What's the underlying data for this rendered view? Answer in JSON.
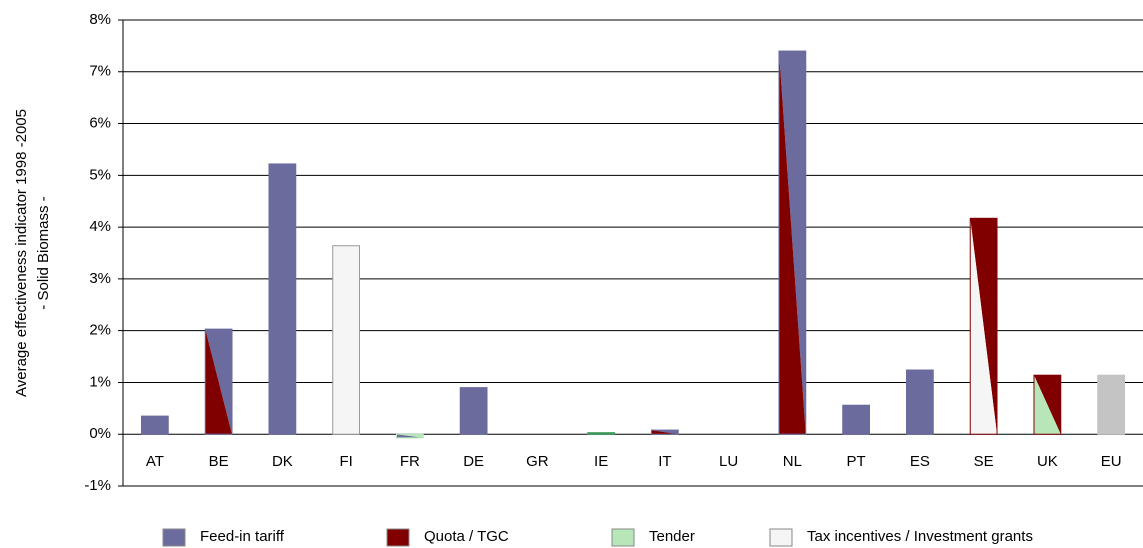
{
  "chart_data": {
    "type": "bar",
    "ylabel": [
      "Average effectiveness indicator 1998 -2005",
      "- Solid Biomass -"
    ],
    "categories": [
      "AT",
      "BE",
      "DK",
      "FI",
      "FR",
      "DE",
      "GR",
      "IE",
      "IT",
      "LU",
      "NL",
      "PT",
      "ES",
      "SE",
      "UK",
      "EU"
    ],
    "values": [
      0.35,
      2.03,
      5.22,
      3.64,
      -0.07,
      0.9,
      0,
      0.03,
      0.08,
      0,
      7.4,
      0.56,
      1.24,
      4.17,
      1.14,
      1.14
    ],
    "bar_colors": [
      [
        "#6b6b9e"
      ],
      [
        "#6b6b9e",
        "#800000"
      ],
      [
        "#6b6b9e"
      ],
      [
        "#f5f5f5"
      ],
      [
        "#b8e6b8",
        "#6b6b9e"
      ],
      [
        "#6b6b9e"
      ],
      [
        "#6b6b9e"
      ],
      [
        "#3c9a5a"
      ],
      [
        "#6b6b9e",
        "#800000"
      ],
      [
        "#6b6b9e"
      ],
      [
        "#6b6b9e",
        "#800000"
      ],
      [
        "#6b6b9e"
      ],
      [
        "#6b6b9e"
      ],
      [
        "#800000",
        "#f5f5f5"
      ],
      [
        "#800000",
        "#b8e6b8"
      ],
      [
        "#c4c4c4"
      ]
    ],
    "legend": [
      {
        "name": "Feed-in tariff",
        "color": "#6b6b9e"
      },
      {
        "name": "Quota / TGC",
        "color": "#800000"
      },
      {
        "name": "Tender",
        "color": "#b8e6b8"
      },
      {
        "name": "Tax incentives / Investment grants",
        "color": "#f5f5f5"
      }
    ],
    "ylim": [
      -1,
      8
    ],
    "yticks": [
      {
        "value": -1,
        "label": "-1%"
      },
      {
        "value": 0,
        "label": "0%"
      },
      {
        "value": 1,
        "label": "1%"
      },
      {
        "value": 2,
        "label": "2%"
      },
      {
        "value": 3,
        "label": "3%"
      },
      {
        "value": 4,
        "label": "4%"
      },
      {
        "value": 5,
        "label": "5%"
      },
      {
        "value": 6,
        "label": "6%"
      },
      {
        "value": 7,
        "label": "7%"
      },
      {
        "value": 8,
        "label": "8%"
      }
    ],
    "grid": true
  }
}
